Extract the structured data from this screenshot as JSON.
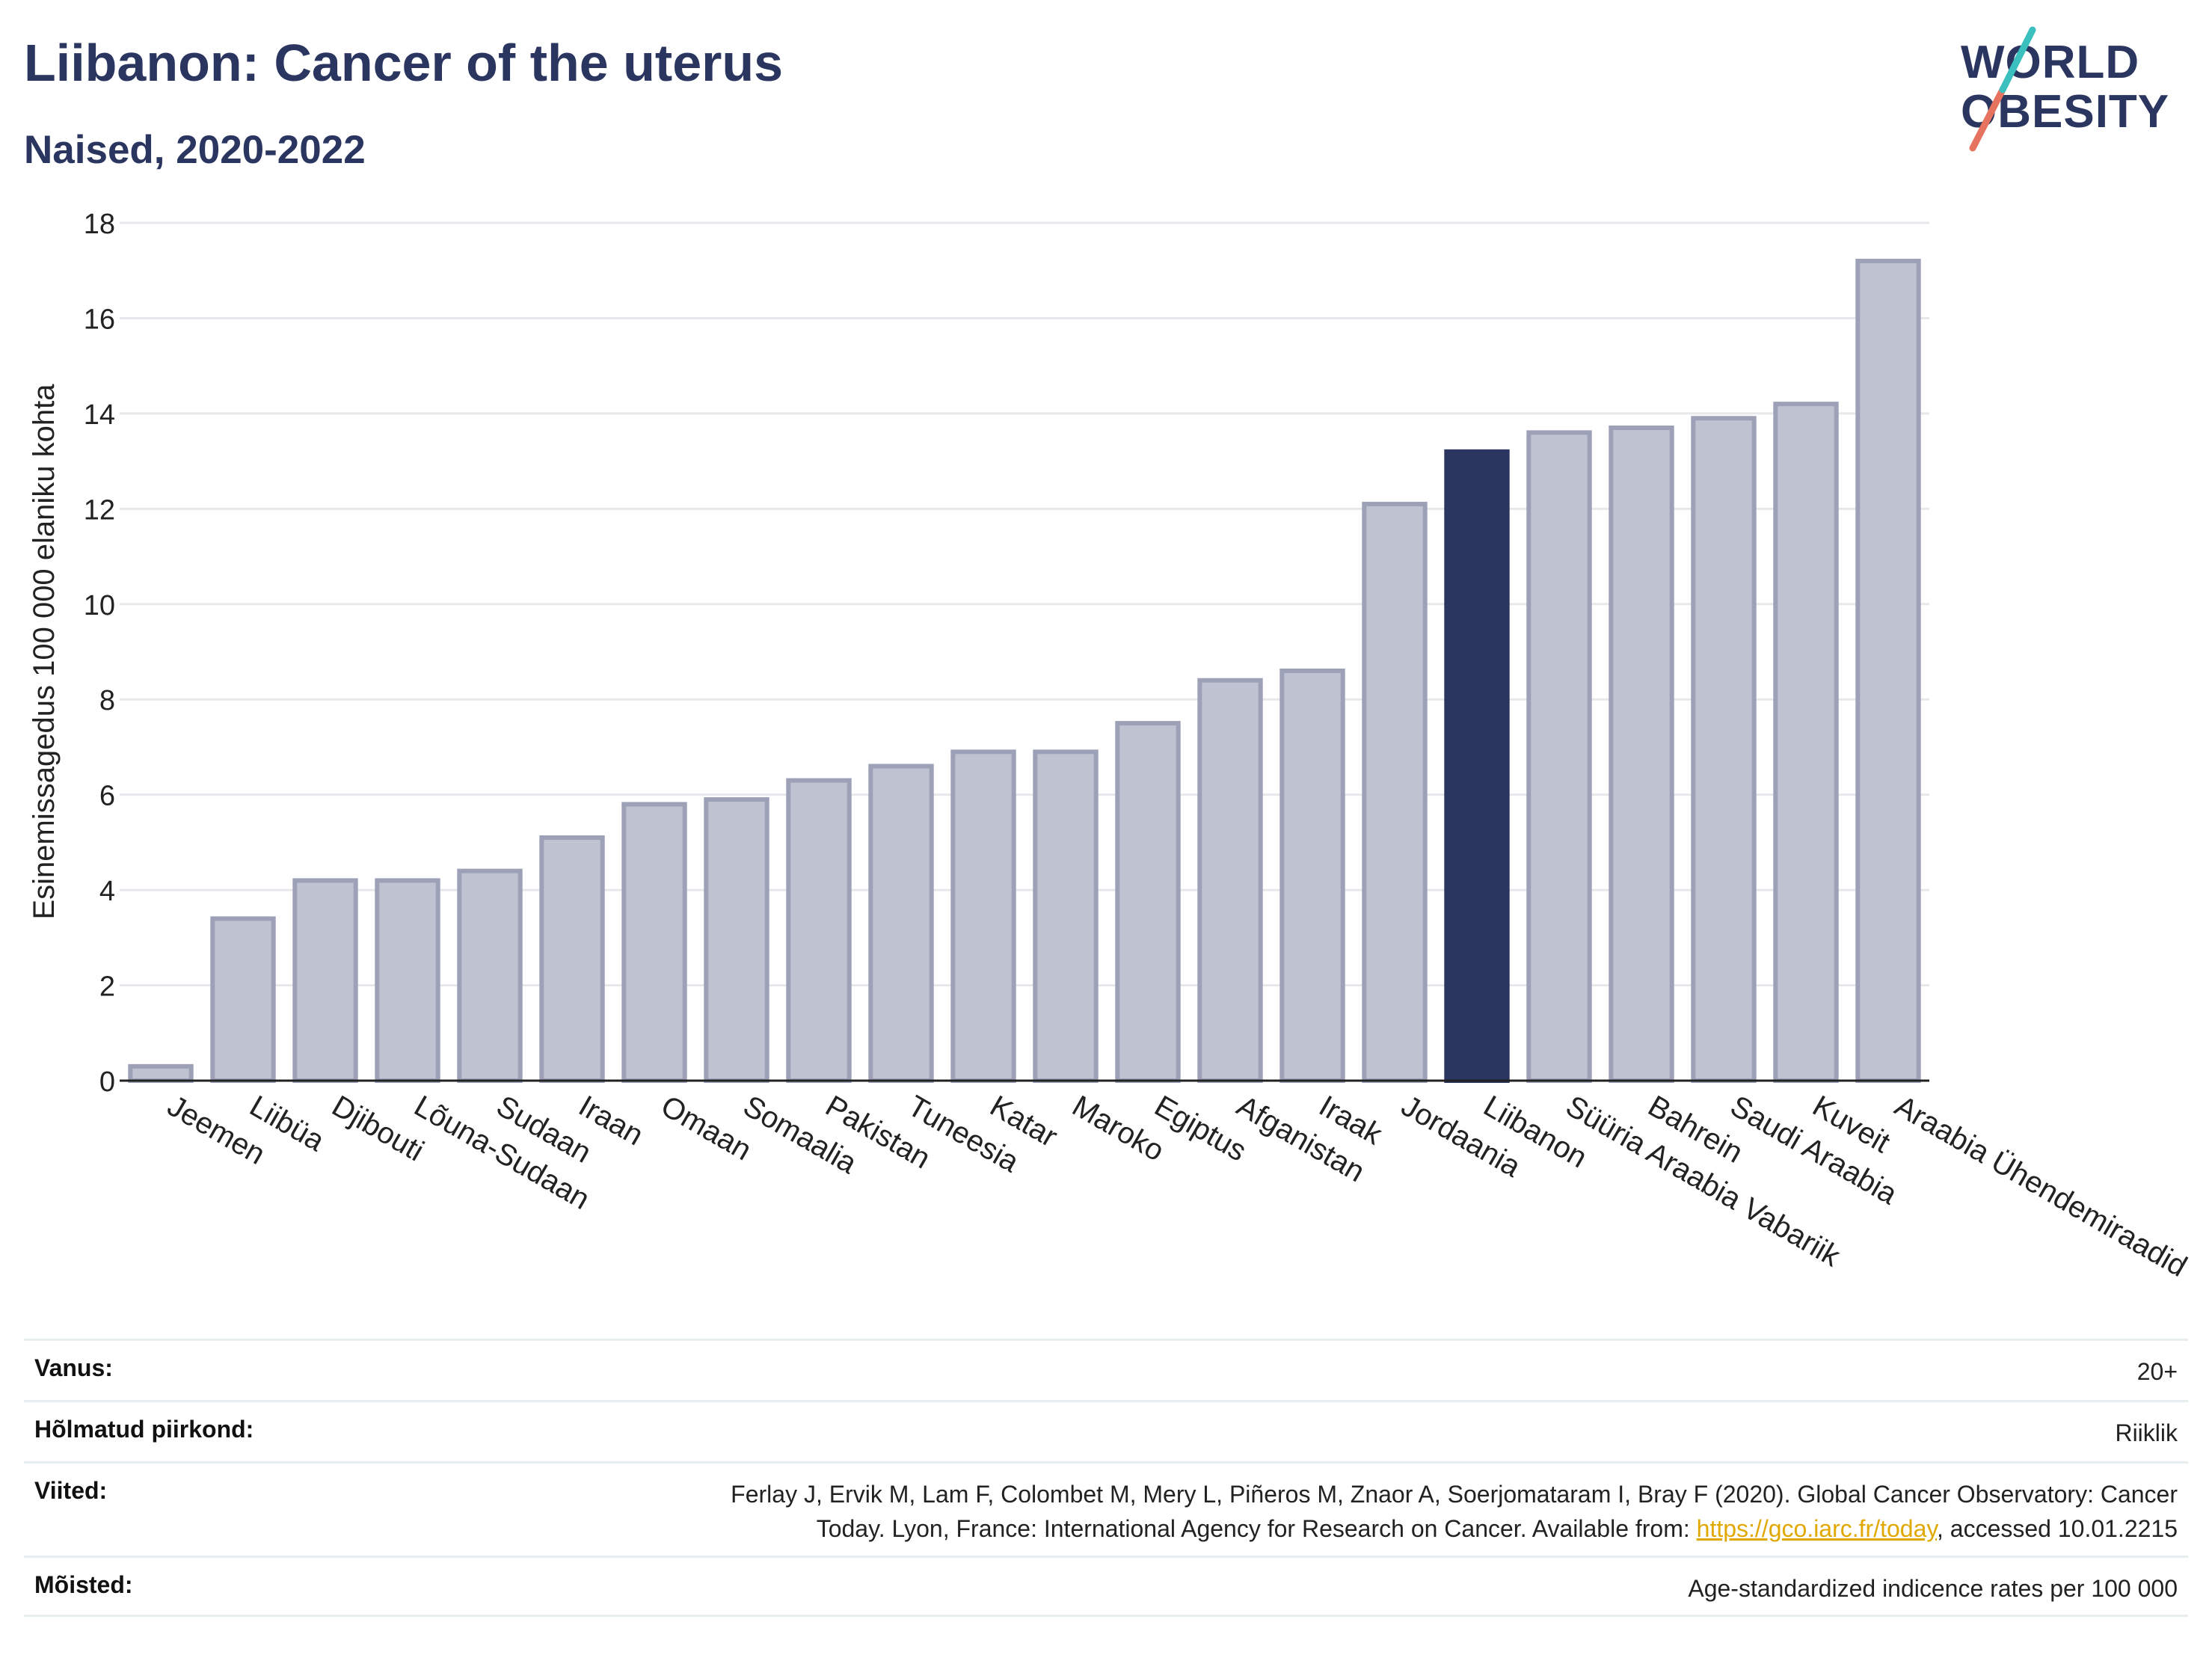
{
  "header": {
    "title": "Liibanon: Cancer of the uterus",
    "subtitle": "Naised, 2020-2022"
  },
  "logo": {
    "line1": "WORLD",
    "line2": "OBESITY",
    "accent_teal": "#3bbfbf",
    "accent_coral": "#e5735f"
  },
  "colors": {
    "bar": "#bfc2d0",
    "bar_border": "#9da1b8",
    "highlight": "#2a3560",
    "grid": "#e6e8ec",
    "axis": "#222222"
  },
  "chart_data": {
    "type": "bar",
    "title": "Liibanon: Cancer of the uterus",
    "subtitle": "Naised, 2020-2022",
    "xlabel": "",
    "ylabel": "Esinemissagedus 100 000 elaniku kohta",
    "ylim": [
      0,
      18
    ],
    "yticks": [
      0,
      2,
      4,
      6,
      8,
      10,
      12,
      14,
      16,
      18
    ],
    "grid": true,
    "highlight": "Liibanon",
    "categories": [
      "Jeemen",
      "Liibüa",
      "Djibouti",
      "Lõuna-Sudaan",
      "Sudaan",
      "Iraan",
      "Omaan",
      "Somaalia",
      "Pakistan",
      "Tuneesia",
      "Katar",
      "Maroko",
      "Egiptus",
      "Afganistan",
      "Iraak",
      "Jordaania",
      "Liibanon",
      "Süüria Araabia Vabariik",
      "Bahrein",
      "Saudi Araabia",
      "Kuveit",
      "Araabia Ühendemiraadid"
    ],
    "values": [
      0.3,
      3.4,
      4.2,
      4.2,
      4.4,
      5.1,
      5.8,
      5.9,
      6.3,
      6.6,
      6.9,
      6.9,
      7.5,
      8.4,
      8.6,
      12.1,
      13.2,
      13.6,
      13.7,
      13.9,
      14.2,
      17.2
    ]
  },
  "info": {
    "age_label": "Vanus:",
    "age_value": "20+",
    "region_label": "Hõlmatud piirkond:",
    "region_value": "Riiklik",
    "refs_label": "Viited:",
    "refs_line1": "Ferlay J, Ervik M, Lam F, Colombet M, Mery L, Piñeros M, Znaor A, Soerjomataram I, Bray F (2020). Global Cancer Observatory: Cancer",
    "refs_line2_pre": "Today. Lyon, France: International Agency for Research on Cancer. Available from: ",
    "refs_link": "https://gco.iarc.fr/today",
    "refs_line2_post": ", accessed 10.01.2215",
    "def_label": "Mõisted:",
    "def_value": "Age-standardized indicence rates per 100 000"
  }
}
